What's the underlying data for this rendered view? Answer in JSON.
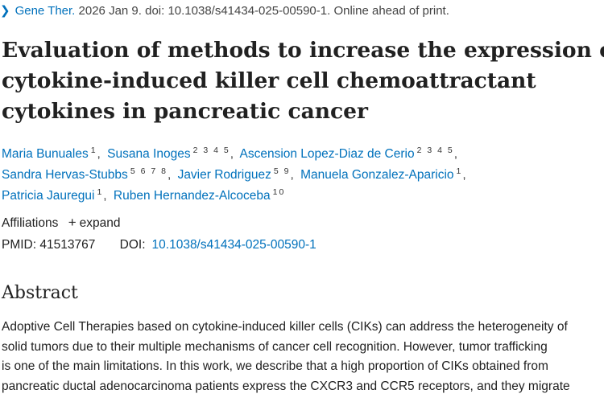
{
  "citation": {
    "journal": "Gene Ther.",
    "rest": "2026 Jan 9. doi: 10.1038/s41434-025-00590-1. Online ahead of print."
  },
  "title_lines": [
    "Evaluation of methods to increase the expression of",
    "cytokine-induced killer cell chemoattractant",
    "cytokines in pancreatic cancer"
  ],
  "authors": [
    {
      "name": "Maria Bunuales",
      "aff": "1"
    },
    {
      "name": "Susana Inoges",
      "aff": "2 3 4 5"
    },
    {
      "name": "Ascension Lopez-Diaz de Cerio",
      "aff": "2 3 4 5"
    },
    {
      "name": "Sandra Hervas-Stubbs",
      "aff": "5 6 7 8"
    },
    {
      "name": "Javier Rodriguez",
      "aff": "5 9"
    },
    {
      "name": "Manuela Gonzalez-Aparicio",
      "aff": "1"
    },
    {
      "name": "Patricia Jauregui",
      "aff": "1"
    },
    {
      "name": "Ruben Hernandez-Alcoceba",
      "aff": "10"
    }
  ],
  "affiliations": {
    "label": "Affiliations",
    "expand_label": "expand"
  },
  "ids": {
    "pmid_label": "PMID:",
    "pmid": "41513767",
    "doi_label": "DOI:",
    "doi": "10.1038/s41434-025-00590-1"
  },
  "abstract": {
    "heading": "Abstract",
    "lines": [
      "Adoptive Cell Therapies based on cytokine-induced killer cells (CIKs) can address the heterogeneity of",
      "solid tumors due to their multiple mechanisms of cancer cell recognition. However, tumor trafficking",
      "is one of the main limitations. In this work, we describe that a high proportion of CIKs obtained from",
      "pancreatic ductal adenocarcinoma patients express the CXCR3 and CCR5 receptors, and they migrate"
    ]
  }
}
